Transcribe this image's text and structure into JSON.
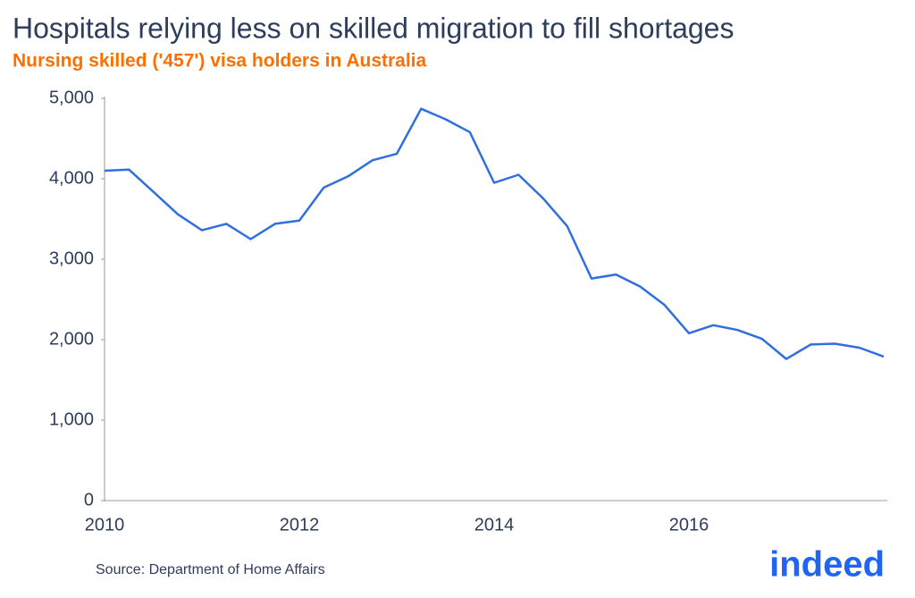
{
  "chart_data": {
    "type": "line",
    "title": "Hospitals relying less on skilled migration to fill shortages",
    "subtitle": "Nursing skilled ('457') visa holders in Australia",
    "source": "Source: Department of Home Affairs",
    "logo": "indeed",
    "categories": [
      "2010",
      null,
      null,
      null,
      null,
      null,
      null,
      null,
      "2012",
      null,
      null,
      null,
      null,
      null,
      null,
      null,
      "2014",
      null,
      null,
      null,
      null,
      null,
      null,
      null,
      "2016",
      null,
      null,
      null,
      null,
      null,
      null,
      null,
      null
    ],
    "series": [
      {
        "name": "Nursing skilled visa holders",
        "color": "#2f6fe0",
        "values": [
          4100,
          4115,
          3840,
          3560,
          3360,
          3440,
          3250,
          3440,
          3480,
          3890,
          4030,
          4230,
          4310,
          4870,
          4740,
          4580,
          3950,
          4050,
          3760,
          3410,
          2760,
          2810,
          2660,
          2430,
          2080,
          2180,
          2120,
          2010,
          1760,
          1940,
          1950,
          1900,
          1790
        ]
      }
    ],
    "ylim": [
      0,
      5000
    ],
    "yticks": [
      0,
      {
        "value": 1000,
        "label": "1,000"
      },
      {
        "value": 2000,
        "label": "2,000"
      },
      {
        "value": 3000,
        "label": "3,000"
      },
      {
        "value": 4000,
        "label": "4,000"
      },
      {
        "value": 5000,
        "label": "5,000"
      }
    ],
    "grid": false
  }
}
